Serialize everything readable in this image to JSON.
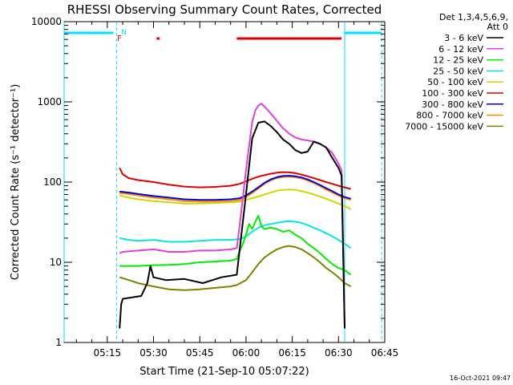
{
  "chart_data": {
    "type": "line",
    "title": "RHESSI Observing Summary Count Rates, Corrected",
    "xlabel": "Start Time (21-Sep-10 05:07:22)",
    "ylabel": "Corrected Count Rate (s⁻¹ detector⁻¹)",
    "y_scale": "log",
    "ylim": [
      1,
      10000
    ],
    "xlim_minutes": [
      301,
      405
    ],
    "x_ticks": [
      "05:15",
      "05:30",
      "05:45",
      "06:00",
      "06:15",
      "06:30",
      "06:45"
    ],
    "x_tick_minutes": [
      315,
      330,
      345,
      360,
      375,
      390,
      405
    ],
    "y_ticks": [
      "1",
      "10",
      "100",
      "1000",
      "10000"
    ],
    "y_tick_values": [
      1,
      10,
      100,
      1000,
      10000
    ],
    "legend_header": [
      "Det 1,3,4,5,6,9,",
      "Att 0"
    ],
    "legend_position": "outside-right",
    "footer_date": "16-Oct-2021 09:47",
    "flag_labels": {
      "night": "N",
      "flare": "F"
    },
    "flag_bars": {
      "night_color": "#00e0ff",
      "flare_color": "#e00000",
      "night_segments": [
        [
          301,
          317
        ],
        [
          392,
          404
        ]
      ],
      "flare_segments": [
        [
          331,
          332
        ],
        [
          357,
          391
        ]
      ]
    },
    "vertical_markers_minutes": [
      301,
      318,
      392,
      404
    ],
    "series": [
      {
        "name": "3 - 6 keV",
        "color": "#000000",
        "x": [
          319,
          319.5,
          320,
          322,
          326,
          328,
          329,
          330,
          334,
          340,
          346,
          352,
          357,
          358,
          360,
          362,
          364,
          366,
          368,
          370,
          372,
          374,
          376,
          378,
          380,
          382,
          384,
          386,
          388,
          390,
          391,
          392
        ],
        "y": [
          1.5,
          3,
          3.5,
          3.6,
          3.8,
          5.5,
          9,
          6.5,
          6,
          6.2,
          5.5,
          6.5,
          7,
          15,
          70,
          350,
          550,
          570,
          500,
          420,
          340,
          300,
          250,
          230,
          240,
          320,
          300,
          270,
          200,
          150,
          120,
          1.5
        ]
      },
      {
        "name": "6 - 12 keV",
        "color": "#e040e0",
        "x": [
          319,
          320,
          325,
          330,
          335,
          340,
          345,
          350,
          355,
          357,
          358,
          360,
          362,
          363,
          364,
          365,
          366,
          368,
          370,
          372,
          374,
          376,
          378,
          380,
          382,
          384,
          386,
          388,
          390,
          391,
          392
        ],
        "y": [
          13,
          13.5,
          14,
          14.5,
          13.5,
          13.5,
          14,
          14,
          14.5,
          15,
          30,
          140,
          560,
          780,
          900,
          950,
          870,
          720,
          580,
          470,
          400,
          360,
          340,
          330,
          320,
          300,
          270,
          230,
          170,
          140,
          1.5
        ]
      },
      {
        "name": "12 - 25 keV",
        "color": "#00ee00",
        "x": [
          319,
          325,
          330,
          335,
          340,
          345,
          350,
          355,
          357,
          358,
          359,
          360,
          361,
          362,
          363,
          364,
          365,
          366,
          368,
          370,
          372,
          374,
          376,
          378,
          380,
          382,
          384,
          386,
          388,
          390,
          392,
          394
        ],
        "y": [
          9,
          9,
          9.2,
          9.3,
          9.5,
          10,
          10.2,
          10.5,
          11,
          14,
          17,
          22,
          30,
          26,
          32,
          38,
          28,
          26,
          27,
          26,
          24,
          25,
          22,
          20,
          17,
          15,
          13,
          11,
          9.5,
          8.5,
          8,
          7
        ]
      },
      {
        "name": "25 - 50 keV",
        "color": "#00e8e8",
        "x": [
          319,
          322,
          325,
          330,
          335,
          340,
          345,
          350,
          355,
          358,
          360,
          362,
          364,
          366,
          368,
          370,
          372,
          374,
          376,
          378,
          380,
          382,
          384,
          386,
          388,
          390,
          392,
          394
        ],
        "y": [
          20,
          19,
          18.5,
          19,
          18,
          18,
          18.5,
          19,
          19,
          19.5,
          21,
          24,
          27,
          29,
          30,
          31,
          32,
          32.5,
          32,
          31,
          29,
          27,
          25,
          23,
          21,
          19,
          17,
          15
        ]
      },
      {
        "name": "50 - 100 keV",
        "color": "#d4d400",
        "x": [
          319,
          322,
          325,
          330,
          335,
          340,
          345,
          350,
          355,
          358,
          360,
          362,
          364,
          366,
          368,
          370,
          372,
          374,
          376,
          378,
          380,
          382,
          384,
          386,
          388,
          390,
          392,
          394
        ],
        "y": [
          68,
          64,
          61,
          58,
          56,
          54,
          54,
          55,
          56,
          57,
          60,
          63,
          66,
          70,
          74,
          78,
          80,
          81,
          80,
          77,
          74,
          70,
          66,
          62,
          58,
          54,
          50,
          46
        ]
      },
      {
        "name": "100 - 300 keV",
        "color": "#e00000",
        "x": [
          319,
          320,
          322,
          325,
          330,
          335,
          340,
          345,
          350,
          355,
          358,
          360,
          362,
          364,
          366,
          368,
          370,
          372,
          374,
          376,
          378,
          380,
          382,
          384,
          386,
          388,
          390,
          392,
          394
        ],
        "y": [
          150,
          125,
          112,
          106,
          100,
          93,
          88,
          86,
          87,
          90,
          95,
          102,
          110,
          117,
          122,
          127,
          131,
          133,
          132,
          129,
          124,
          118,
          112,
          106,
          100,
          95,
          90,
          86,
          82
        ]
      },
      {
        "name": "300 - 800 keV",
        "color": "#0000e0",
        "x": [
          319,
          322,
          325,
          330,
          335,
          340,
          345,
          350,
          355,
          358,
          360,
          362,
          364,
          366,
          368,
          370,
          372,
          374,
          376,
          378,
          380,
          382,
          384,
          386,
          388,
          390,
          392,
          394
        ],
        "y": [
          76,
          74,
          71,
          67,
          64,
          61,
          60,
          60,
          61,
          63,
          68,
          76,
          86,
          98,
          108,
          115,
          119,
          120,
          118,
          114,
          108,
          100,
          92,
          84,
          77,
          70,
          65,
          62
        ]
      },
      {
        "name": "800 - 7000 keV",
        "color": "#ff8c00",
        "x": [
          319,
          322,
          325,
          330,
          335,
          340,
          345,
          350,
          355,
          358,
          360,
          362,
          364,
          366,
          368,
          370,
          372,
          374,
          376,
          378,
          380,
          382,
          384,
          386,
          388,
          390,
          392,
          394
        ],
        "y": [
          73,
          71,
          68,
          64,
          61,
          58,
          57,
          57,
          58,
          60,
          65,
          73,
          83,
          95,
          105,
          112,
          116,
          117,
          115,
          111,
          105,
          97,
          89,
          81,
          74,
          68,
          63,
          60
        ]
      },
      {
        "name": "7000 - 15000 keV",
        "color": "#808000",
        "x": [
          319,
          322,
          325,
          330,
          335,
          340,
          345,
          350,
          355,
          357,
          360,
          362,
          364,
          366,
          368,
          370,
          372,
          374,
          376,
          378,
          380,
          382,
          384,
          386,
          388,
          390,
          392,
          394
        ],
        "y": [
          6.5,
          6,
          5.5,
          5,
          4.6,
          4.5,
          4.6,
          4.8,
          5,
          5.2,
          6,
          7.5,
          9.5,
          11.5,
          13,
          14.5,
          15.5,
          16,
          15.5,
          14.5,
          13,
          11.5,
          10,
          8.5,
          7.5,
          6.5,
          5.5,
          5
        ]
      }
    ]
  }
}
